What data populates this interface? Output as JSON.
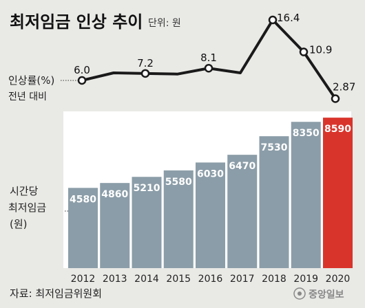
{
  "title": "최저임금 인상 추이",
  "unit": "단위: 원",
  "line_label_1": "인상률(%)",
  "line_label_2": "전년 대비",
  "bar_label_1": "시간당",
  "bar_label_2": "최저임금",
  "bar_label_3": "(원)",
  "source": "자료: 최저임금위원회",
  "brand": "중앙일보",
  "colors": {
    "background": "#e9e9e6",
    "bar": "#8b9da8",
    "bar_highlight": "#d9342b",
    "line": "#1a1a1a",
    "panel": "#ffffff"
  },
  "chart_data": [
    {
      "type": "line",
      "x": [
        "2012",
        "2013",
        "2014",
        "2015",
        "2016",
        "2017",
        "2018",
        "2019",
        "2020"
      ],
      "values": [
        6.0,
        7.3,
        7.2,
        7.1,
        8.1,
        7.3,
        16.4,
        10.9,
        2.87
      ],
      "labels": [
        "6.0",
        "",
        "7.2",
        "",
        "8.1",
        "",
        "16.4",
        "10.9",
        "2.87"
      ],
      "ylabel": "인상률(%)"
    },
    {
      "type": "bar",
      "categories": [
        "2012",
        "2013",
        "2014",
        "2015",
        "2016",
        "2017",
        "2018",
        "2019",
        "2020"
      ],
      "values": [
        4580,
        4860,
        5210,
        5580,
        6030,
        6470,
        7530,
        8350,
        8590
      ],
      "labels": [
        "4580",
        "4860",
        "5210",
        "5580",
        "6030",
        "6470",
        "7530",
        "8350",
        "8590"
      ],
      "highlight": "2020",
      "ylabel": "시간당 최저임금 (원)"
    }
  ]
}
